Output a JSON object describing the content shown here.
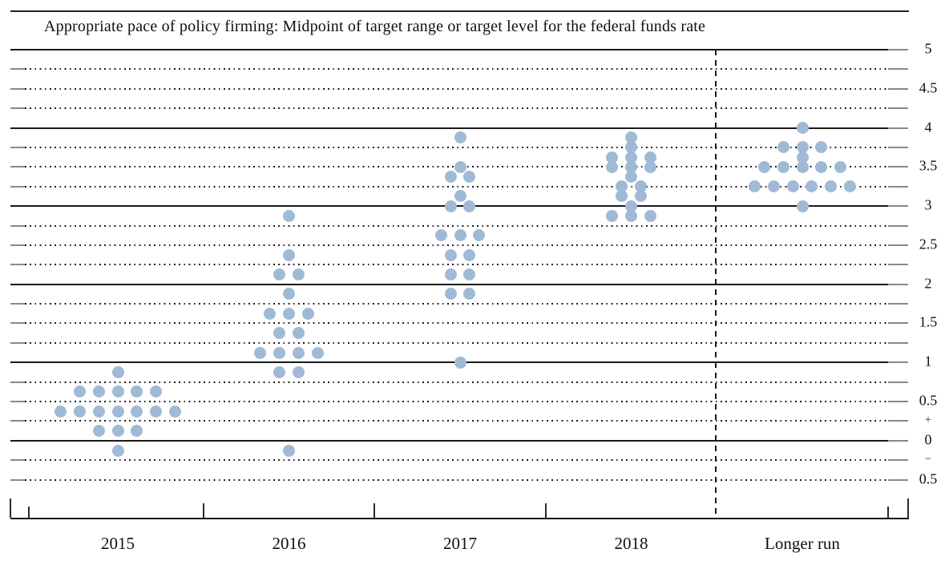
{
  "chart_data": {
    "type": "scatter",
    "subtype": "fomc-dot-plot",
    "title": "Appropriate pace of policy firming: Midpoint of target range or target level for the federal funds rate",
    "categories": [
      "2015",
      "2016",
      "2017",
      "2018",
      "Longer run"
    ],
    "grid": "dotted-quarter-point, solid-integer",
    "legend_position": "none",
    "y_axis": {
      "min": -0.5,
      "max": 5,
      "grid_step": 0.25,
      "tick_labels": [
        {
          "value": 5,
          "label": "5"
        },
        {
          "value": 4.5,
          "label": "4.5"
        },
        {
          "value": 4,
          "label": "4"
        },
        {
          "value": 3.5,
          "label": "3.5"
        },
        {
          "value": 3,
          "label": "3"
        },
        {
          "value": 2.5,
          "label": "2.5"
        },
        {
          "value": 2,
          "label": "2"
        },
        {
          "value": 1.5,
          "label": "1.5"
        },
        {
          "value": 1,
          "label": "1"
        },
        {
          "value": 0.5,
          "label": "0.5"
        },
        {
          "value": 0.25,
          "label": "+"
        },
        {
          "value": 0,
          "label": "0"
        },
        {
          "value": -0.25,
          "label": "−"
        },
        {
          "value": -0.5,
          "label": "0.5"
        }
      ]
    },
    "series": [
      {
        "category": "2015",
        "dots": [
          [
            0.875,
            1
          ],
          [
            0.625,
            5
          ],
          [
            0.375,
            7
          ],
          [
            0.125,
            3
          ],
          [
            -0.125,
            1
          ]
        ]
      },
      {
        "category": "2016",
        "dots": [
          [
            2.875,
            1
          ],
          [
            2.375,
            1
          ],
          [
            2.125,
            2
          ],
          [
            1.875,
            1
          ],
          [
            1.625,
            3
          ],
          [
            1.375,
            2
          ],
          [
            1.125,
            4
          ],
          [
            0.875,
            2
          ],
          [
            -0.125,
            1
          ]
        ]
      },
      {
        "category": "2017",
        "dots": [
          [
            3.875,
            1
          ],
          [
            3.5,
            1
          ],
          [
            3.375,
            2
          ],
          [
            3.125,
            1
          ],
          [
            3.0,
            2
          ],
          [
            2.625,
            3
          ],
          [
            2.375,
            2
          ],
          [
            2.125,
            2
          ],
          [
            1.875,
            2
          ],
          [
            1.0,
            1
          ]
        ]
      },
      {
        "category": "2018",
        "dots": [
          [
            3.875,
            1
          ],
          [
            3.75,
            1
          ],
          [
            3.625,
            3
          ],
          [
            3.5,
            3
          ],
          [
            3.375,
            1
          ],
          [
            3.25,
            2
          ],
          [
            3.125,
            2
          ],
          [
            3.0,
            1
          ],
          [
            2.875,
            3
          ]
        ]
      },
      {
        "category": "Longer run",
        "dots": [
          [
            4.0,
            1
          ],
          [
            3.75,
            3
          ],
          [
            3.625,
            1
          ],
          [
            3.5,
            5
          ],
          [
            3.25,
            6
          ],
          [
            3.0,
            1
          ]
        ]
      }
    ],
    "colors": {
      "dot": "#a0bad6",
      "line": "#1a1a1a",
      "end_cap": "#8a8a8a"
    }
  }
}
